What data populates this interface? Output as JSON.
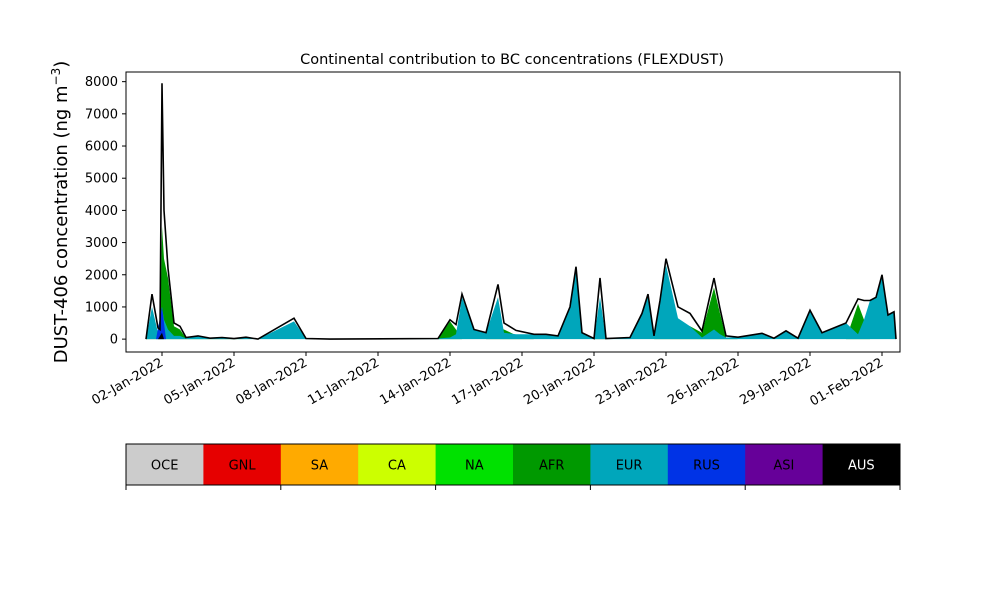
{
  "chart_data": {
    "type": "area",
    "title": "Continental contribution to BC concentrations (FLEXDUST)",
    "ylabel": "DUST-406 concentration (ng m",
    "ylabel_sup": "−3",
    "ylabel_close": ")",
    "ylim": [
      -400,
      8300
    ],
    "yticks": [
      0,
      1000,
      2000,
      3000,
      4000,
      5000,
      6000,
      7000,
      8000
    ],
    "xlim": [
      "2021-12-31T12:00",
      "2022-02-01T18:00"
    ],
    "xticks": [
      {
        "date": "2022-01-02",
        "label": "02-Jan-2022"
      },
      {
        "date": "2022-01-05",
        "label": "05-Jan-2022"
      },
      {
        "date": "2022-01-08",
        "label": "08-Jan-2022"
      },
      {
        "date": "2022-01-11",
        "label": "11-Jan-2022"
      },
      {
        "date": "2022-01-14",
        "label": "14-Jan-2022"
      },
      {
        "date": "2022-01-17",
        "label": "17-Jan-2022"
      },
      {
        "date": "2022-01-20",
        "label": "20-Jan-2022"
      },
      {
        "date": "2022-01-23",
        "label": "23-Jan-2022"
      },
      {
        "date": "2022-01-26",
        "label": "26-Jan-2022"
      },
      {
        "date": "2022-01-29",
        "label": "29-Jan-2022"
      },
      {
        "date": "2022-02-01",
        "label": "01-Feb-2022"
      }
    ],
    "grid": false,
    "legend_placement": "bottom colorbar",
    "legend": [
      {
        "code": "OCE",
        "color": "#cccccc",
        "text_color": "#000000"
      },
      {
        "code": "GNL",
        "color": "#e60000",
        "text_color": "#000000"
      },
      {
        "code": "SA",
        "color": "#ffaa00",
        "text_color": "#000000"
      },
      {
        "code": "CA",
        "color": "#ccff00",
        "text_color": "#000000"
      },
      {
        "code": "NA",
        "color": "#00e100",
        "text_color": "#000000"
      },
      {
        "code": "AFR",
        "color": "#009900",
        "text_color": "#000000"
      },
      {
        "code": "EUR",
        "color": "#00a6bb",
        "text_color": "#000000"
      },
      {
        "code": "RUS",
        "color": "#0033e6",
        "text_color": "#000000"
      },
      {
        "code": "ASI",
        "color": "#660099",
        "text_color": "#000000"
      },
      {
        "code": "AUS",
        "color": "#000000",
        "text_color": "#ffffff"
      }
    ],
    "series": [
      {
        "name": "AFR",
        "color": "#009900",
        "points": [
          [
            "2022-01-01T08:00",
            0
          ],
          [
            "2022-01-01T14:00",
            400
          ],
          [
            "2022-01-01T20:00",
            150
          ],
          [
            "2022-01-01T22:00",
            300
          ],
          [
            "2022-01-02T00:00",
            3500
          ],
          [
            "2022-01-02T02:00",
            2500
          ],
          [
            "2022-01-02T06:00",
            1900
          ],
          [
            "2022-01-02T12:00",
            400
          ],
          [
            "2022-01-02T18:00",
            300
          ],
          [
            "2022-01-03T00:00",
            30
          ],
          [
            "2022-01-04T00:00",
            10
          ],
          [
            "2022-01-05T00:00",
            5
          ],
          [
            "2022-01-06T00:00",
            0
          ],
          [
            "2022-01-13T12:00",
            0
          ],
          [
            "2022-01-14T00:00",
            550
          ],
          [
            "2022-01-14T06:00",
            300
          ],
          [
            "2022-01-14T12:00",
            0
          ],
          [
            "2022-01-15T12:00",
            0
          ],
          [
            "2022-01-16T00:00",
            350
          ],
          [
            "2022-01-16T06:00",
            300
          ],
          [
            "2022-01-16T18:00",
            120
          ],
          [
            "2022-01-17T12:00",
            0
          ],
          [
            "2022-01-20T00:00",
            0
          ],
          [
            "2022-01-20T06:00",
            500
          ],
          [
            "2022-01-20T12:00",
            0
          ],
          [
            "2022-01-22T12:00",
            0
          ],
          [
            "2022-01-23T00:00",
            200
          ],
          [
            "2022-01-23T12:00",
            350
          ],
          [
            "2022-01-24T00:00",
            400
          ],
          [
            "2022-01-24T12:00",
            200
          ],
          [
            "2022-01-25T00:00",
            1600
          ],
          [
            "2022-01-25T06:00",
            800
          ],
          [
            "2022-01-25T12:00",
            50
          ],
          [
            "2022-01-26T00:00",
            0
          ],
          [
            "2022-01-29T12:00",
            0
          ],
          [
            "2022-01-30T12:00",
            0
          ],
          [
            "2022-01-31T00:00",
            1100
          ],
          [
            "2022-01-31T06:00",
            600
          ],
          [
            "2022-01-31T12:00",
            0
          ],
          [
            "2022-02-01T00:00",
            0
          ]
        ]
      },
      {
        "name": "EUR",
        "color": "#00a6bb",
        "points": [
          [
            "2022-01-01T08:00",
            0
          ],
          [
            "2022-01-01T14:00",
            1000
          ],
          [
            "2022-01-01T20:00",
            200
          ],
          [
            "2022-01-02T00:00",
            1000
          ],
          [
            "2022-01-02T02:00",
            600
          ],
          [
            "2022-01-02T06:00",
            300
          ],
          [
            "2022-01-02T12:00",
            100
          ],
          [
            "2022-01-02T18:00",
            100
          ],
          [
            "2022-01-03T00:00",
            20
          ],
          [
            "2022-01-03T12:00",
            100
          ],
          [
            "2022-01-04T00:00",
            20
          ],
          [
            "2022-01-04T12:00",
            50
          ],
          [
            "2022-01-05T00:00",
            10
          ],
          [
            "2022-01-05T12:00",
            60
          ],
          [
            "2022-01-06T00:00",
            0
          ],
          [
            "2022-01-07T12:00",
            550
          ],
          [
            "2022-01-08T00:00",
            20
          ],
          [
            "2022-01-09T00:00",
            0
          ],
          [
            "2022-01-13T12:00",
            20
          ],
          [
            "2022-01-14T00:00",
            50
          ],
          [
            "2022-01-14T06:00",
            150
          ],
          [
            "2022-01-14T12:00",
            1300
          ],
          [
            "2022-01-15T00:00",
            300
          ],
          [
            "2022-01-15T12:00",
            200
          ],
          [
            "2022-01-16T00:00",
            1300
          ],
          [
            "2022-01-16T06:00",
            200
          ],
          [
            "2022-01-16T18:00",
            150
          ],
          [
            "2022-01-17T12:00",
            150
          ],
          [
            "2022-01-18T00:00",
            150
          ],
          [
            "2022-01-18T12:00",
            100
          ],
          [
            "2022-01-19T00:00",
            1000
          ],
          [
            "2022-01-19T06:00",
            2200
          ],
          [
            "2022-01-19T12:00",
            200
          ],
          [
            "2022-01-20T00:00",
            20
          ],
          [
            "2022-01-20T06:00",
            1300
          ],
          [
            "2022-01-20T12:00",
            20
          ],
          [
            "2022-01-21T12:00",
            50
          ],
          [
            "2022-01-22T00:00",
            800
          ],
          [
            "2022-01-22T06:00",
            1400
          ],
          [
            "2022-01-22T12:00",
            100
          ],
          [
            "2022-01-22T18:00",
            1200
          ],
          [
            "2022-01-23T00:00",
            2300
          ],
          [
            "2022-01-23T12:00",
            650
          ],
          [
            "2022-01-24T00:00",
            400
          ],
          [
            "2022-01-24T12:00",
            50
          ],
          [
            "2022-01-25T00:00",
            300
          ],
          [
            "2022-01-25T06:00",
            150
          ],
          [
            "2022-01-25T12:00",
            50
          ],
          [
            "2022-01-26T00:00",
            60
          ],
          [
            "2022-01-27T00:00",
            180
          ],
          [
            "2022-01-27T12:00",
            30
          ],
          [
            "2022-01-28T00:00",
            260
          ],
          [
            "2022-01-28T12:00",
            30
          ],
          [
            "2022-01-29T00:00",
            900
          ],
          [
            "2022-01-29T12:00",
            200
          ],
          [
            "2022-01-30T12:00",
            500
          ],
          [
            "2022-01-31T00:00",
            150
          ],
          [
            "2022-01-31T06:00",
            600
          ],
          [
            "2022-01-31T12:00",
            1200
          ],
          [
            "2022-01-31T18:00",
            1300
          ],
          [
            "2022-02-01T00:00",
            2000
          ],
          [
            "2022-02-01T06:00",
            750
          ],
          [
            "2022-02-01T12:00",
            850
          ],
          [
            "2022-02-01T14:00",
            0
          ]
        ]
      },
      {
        "name": "RUS",
        "color": "#0033e6",
        "points": [
          [
            "2022-01-01T18:00",
            0
          ],
          [
            "2022-01-02T00:00",
            1000
          ],
          [
            "2022-01-02T04:00",
            0
          ],
          [
            "2022-01-03T00:00",
            0
          ],
          [
            "2022-02-01T14:00",
            0
          ]
        ]
      },
      {
        "name": "AUS",
        "color": "#000000",
        "points": [
          [
            "2022-01-01T20:00",
            0
          ],
          [
            "2022-01-02T00:00",
            200
          ],
          [
            "2022-01-02T02:00",
            0
          ],
          [
            "2022-02-01T14:00",
            0
          ]
        ]
      }
    ],
    "total": [
      [
        "2022-01-01T08:00",
        0
      ],
      [
        "2022-01-01T14:00",
        1400
      ],
      [
        "2022-01-01T20:00",
        350
      ],
      [
        "2022-01-01T22:00",
        300
      ],
      [
        "2022-01-02T00:00",
        7950
      ],
      [
        "2022-01-02T02:00",
        4000
      ],
      [
        "2022-01-02T06:00",
        2200
      ],
      [
        "2022-01-02T12:00",
        500
      ],
      [
        "2022-01-02T18:00",
        400
      ],
      [
        "2022-01-03T00:00",
        50
      ],
      [
        "2022-01-03T12:00",
        100
      ],
      [
        "2022-01-04T00:00",
        30
      ],
      [
        "2022-01-04T12:00",
        50
      ],
      [
        "2022-01-05T00:00",
        15
      ],
      [
        "2022-01-05T12:00",
        60
      ],
      [
        "2022-01-06T00:00",
        0
      ],
      [
        "2022-01-07T12:00",
        650
      ],
      [
        "2022-01-08T00:00",
        20
      ],
      [
        "2022-01-09T00:00",
        0
      ],
      [
        "2022-01-13T12:00",
        20
      ],
      [
        "2022-01-14T00:00",
        600
      ],
      [
        "2022-01-14T06:00",
        450
      ],
      [
        "2022-01-14T12:00",
        1400
      ],
      [
        "2022-01-15T00:00",
        300
      ],
      [
        "2022-01-15T12:00",
        200
      ],
      [
        "2022-01-16T00:00",
        1700
      ],
      [
        "2022-01-16T06:00",
        500
      ],
      [
        "2022-01-16T18:00",
        270
      ],
      [
        "2022-01-17T12:00",
        150
      ],
      [
        "2022-01-18T00:00",
        150
      ],
      [
        "2022-01-18T12:00",
        100
      ],
      [
        "2022-01-19T00:00",
        1000
      ],
      [
        "2022-01-19T06:00",
        2250
      ],
      [
        "2022-01-19T12:00",
        200
      ],
      [
        "2022-01-20T00:00",
        20
      ],
      [
        "2022-01-20T06:00",
        1900
      ],
      [
        "2022-01-20T12:00",
        20
      ],
      [
        "2022-01-21T12:00",
        50
      ],
      [
        "2022-01-22T00:00",
        800
      ],
      [
        "2022-01-22T06:00",
        1400
      ],
      [
        "2022-01-22T12:00",
        100
      ],
      [
        "2022-01-22T18:00",
        1200
      ],
      [
        "2022-01-23T00:00",
        2500
      ],
      [
        "2022-01-23T12:00",
        1000
      ],
      [
        "2022-01-24T00:00",
        800
      ],
      [
        "2022-01-24T12:00",
        250
      ],
      [
        "2022-01-25T00:00",
        1900
      ],
      [
        "2022-01-25T06:00",
        950
      ],
      [
        "2022-01-25T12:00",
        100
      ],
      [
        "2022-01-26T00:00",
        60
      ],
      [
        "2022-01-27T00:00",
        180
      ],
      [
        "2022-01-27T12:00",
        30
      ],
      [
        "2022-01-28T00:00",
        260
      ],
      [
        "2022-01-28T12:00",
        30
      ],
      [
        "2022-01-29T00:00",
        900
      ],
      [
        "2022-01-29T12:00",
        200
      ],
      [
        "2022-01-30T12:00",
        500
      ],
      [
        "2022-01-31T00:00",
        1250
      ],
      [
        "2022-01-31T06:00",
        1200
      ],
      [
        "2022-01-31T12:00",
        1200
      ],
      [
        "2022-01-31T18:00",
        1300
      ],
      [
        "2022-02-01T00:00",
        2000
      ],
      [
        "2022-02-01T06:00",
        750
      ],
      [
        "2022-02-01T12:00",
        850
      ],
      [
        "2022-02-01T14:00",
        0
      ]
    ]
  }
}
